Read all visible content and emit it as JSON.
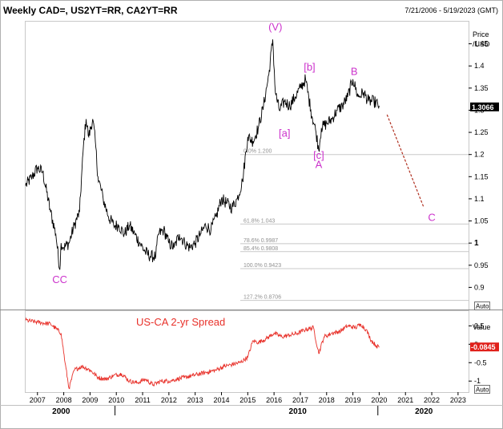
{
  "header": {
    "title": "Weekly CAD=, US2YT=RR, CA2YT=RR",
    "date_range": "7/21/2006 - 5/19/2023 (GMT)"
  },
  "main_panel": {
    "axis_title_line1": "Price",
    "axis_title_line2": "/USD",
    "last_price_label": "1.3066",
    "scale_button": "Auto"
  },
  "lower_panel": {
    "title": "US-CA 2-yr Spread",
    "axis_title": "Value",
    "last_value_label": "-0.0845",
    "scale_button": "Auto"
  },
  "colors": {
    "price_line": "#000000",
    "spread_line": "#e8312a",
    "wave_labels": "#cc33cc",
    "projection": "#b03020",
    "fib_lines": "#c8c8c8"
  },
  "chart_data": [
    {
      "type": "line",
      "title": "Weekly CAD=, US2YT=RR, CA2YT=RR",
      "ylabel": "Price /USD",
      "ylim": [
        0.85,
        1.5
      ],
      "xlim": [
        2006.55,
        2023.4
      ],
      "y_ticks": [
        0.9,
        0.95,
        1,
        1.05,
        1.1,
        1.15,
        1.2,
        1.25,
        1.3,
        1.35,
        1.4,
        1.45
      ],
      "y_tick_labels": [
        "0.9",
        "0.95",
        "1",
        "1.05",
        "1.1",
        "1.15",
        "1.2",
        "1.25",
        "1.3",
        "1.35",
        "1.4",
        "1.45"
      ],
      "x_ticks": [
        2007,
        2008,
        2009,
        2010,
        2011,
        2012,
        2013,
        2014,
        2015,
        2016,
        2017,
        2018,
        2019,
        2020,
        2021,
        2022,
        2023
      ],
      "x_tick_labels": [
        "2007",
        "2008",
        "2009",
        "2010",
        "2011",
        "2012",
        "2013",
        "2014",
        "2015",
        "2016",
        "2017",
        "2018",
        "2019",
        "2020",
        "2021",
        "2022",
        "2023"
      ],
      "x_decade_labels": [
        {
          "x": 2007.9,
          "label": "2000"
        },
        {
          "x": 2016.9,
          "label": "2010"
        },
        {
          "x": 2021.7,
          "label": "2020"
        }
      ],
      "series": [
        {
          "x": [
            2006.55,
            2006.8,
            2007.0,
            2007.2,
            2007.5,
            2007.7,
            2007.85,
            2007.9,
            2008.0,
            2008.2,
            2008.4,
            2008.6,
            2008.75,
            2008.85,
            2008.95,
            2009.1,
            2009.2,
            2009.3,
            2009.5,
            2009.7,
            2009.9,
            2010.1,
            2010.3,
            2010.5,
            2010.7,
            2010.9,
            2011.1,
            2011.3,
            2011.5,
            2011.6,
            2011.8,
            2012.0,
            2012.2,
            2012.4,
            2012.6,
            2012.8,
            2013.0,
            2013.2,
            2013.4,
            2013.6,
            2013.8,
            2014.0,
            2014.2,
            2014.4,
            2014.6,
            2014.8,
            2015.0,
            2015.2,
            2015.4,
            2015.6,
            2015.8,
            2015.95,
            2016.05,
            2016.2,
            2016.4,
            2016.6,
            2016.8,
            2017.0,
            2017.2,
            2017.4,
            2017.6,
            2017.7,
            2017.8,
            2018.0,
            2018.2,
            2018.4,
            2018.6,
            2018.8,
            2019.0,
            2019.2,
            2019.4,
            2019.6,
            2019.8,
            2020.0
          ],
          "values": [
            1.13,
            1.15,
            1.17,
            1.16,
            1.07,
            1.02,
            0.94,
            1.0,
            0.99,
            1.0,
            1.04,
            1.07,
            1.22,
            1.28,
            1.24,
            1.28,
            1.23,
            1.15,
            1.1,
            1.06,
            1.04,
            1.04,
            1.02,
            1.04,
            1.02,
            1.0,
            0.98,
            0.97,
            0.97,
            1.02,
            1.03,
            1.0,
            0.99,
            1.02,
            1.0,
            0.99,
            1.0,
            1.02,
            1.04,
            1.03,
            1.06,
            1.1,
            1.09,
            1.08,
            1.1,
            1.14,
            1.24,
            1.23,
            1.26,
            1.31,
            1.38,
            1.46,
            1.34,
            1.3,
            1.32,
            1.31,
            1.33,
            1.35,
            1.37,
            1.3,
            1.25,
            1.21,
            1.26,
            1.27,
            1.28,
            1.3,
            1.31,
            1.33,
            1.37,
            1.33,
            1.34,
            1.32,
            1.32,
            1.31
          ]
        }
      ],
      "fib_levels": [
        {
          "y": 1.2,
          "label": "0.0%  1.200"
        },
        {
          "y": 1.043,
          "label": "61.8%  1.043"
        },
        {
          "y": 0.9987,
          "label": "78.6%  0.9987"
        },
        {
          "y": 0.9808,
          "label": "85.4%  0.9808"
        },
        {
          "y": 0.9423,
          "label": "100.0%  0.9423"
        },
        {
          "y": 0.8706,
          "label": "127.2%  0.8706"
        }
      ],
      "annotations": [
        {
          "x": 2007.85,
          "y": 0.91,
          "text": "CC"
        },
        {
          "x": 2016.05,
          "y": 1.48,
          "text": "(V)"
        },
        {
          "x": 2016.4,
          "y": 1.24,
          "text": "[a]"
        },
        {
          "x": 2017.35,
          "y": 1.39,
          "text": "[b]"
        },
        {
          "x": 2017.7,
          "y": 1.19,
          "text": "[c]"
        },
        {
          "x": 2017.7,
          "y": 1.17,
          "text": "A"
        },
        {
          "x": 2019.05,
          "y": 1.38,
          "text": "B"
        },
        {
          "x": 2022.0,
          "y": 1.05,
          "text": "C"
        }
      ],
      "projection": {
        "x": [
          2020.3,
          2021.7
        ],
        "values": [
          1.29,
          1.08
        ]
      },
      "last_value": 1.3066
    },
    {
      "type": "line",
      "title": "US-CA 2-yr Spread",
      "ylabel": "Value",
      "ylim": [
        -1.3,
        0.9
      ],
      "y_ticks": [
        -1,
        -0.5,
        0,
        0.5
      ],
      "y_tick_labels": [
        "-1",
        "-0.5",
        "0",
        "0.5"
      ],
      "series": [
        {
          "name": "US-CA 2-yr Spread",
          "x": [
            2006.55,
            2007.0,
            2007.5,
            2007.9,
            2008.05,
            2008.2,
            2008.4,
            2008.7,
            2009.0,
            2009.3,
            2009.6,
            2009.9,
            2010.2,
            2010.5,
            2010.8,
            2011.1,
            2011.4,
            2011.7,
            2012.0,
            2012.3,
            2012.6,
            2012.9,
            2013.2,
            2013.5,
            2013.8,
            2014.1,
            2014.4,
            2014.7,
            2015.0,
            2015.2,
            2015.4,
            2015.7,
            2016.0,
            2016.3,
            2016.6,
            2016.9,
            2017.2,
            2017.5,
            2017.7,
            2017.9,
            2018.2,
            2018.5,
            2018.8,
            2019.1,
            2019.3,
            2019.5,
            2019.7,
            2019.9,
            2020.0
          ],
          "values": [
            0.65,
            0.6,
            0.55,
            0.3,
            -0.5,
            -1.2,
            -0.7,
            -0.6,
            -0.7,
            -0.9,
            -0.95,
            -0.85,
            -0.8,
            -1.0,
            -1.05,
            -0.95,
            -1.1,
            -1.0,
            -1.0,
            -0.95,
            -0.9,
            -0.85,
            -0.8,
            -0.75,
            -0.7,
            -0.6,
            -0.55,
            -0.5,
            -0.35,
            0.1,
            0.05,
            0.15,
            0.3,
            0.2,
            0.25,
            0.3,
            0.4,
            0.45,
            -0.25,
            0.2,
            0.3,
            0.35,
            0.5,
            0.45,
            0.55,
            0.4,
            0.1,
            -0.05,
            -0.0845
          ]
        }
      ],
      "last_value": -0.0845
    }
  ]
}
